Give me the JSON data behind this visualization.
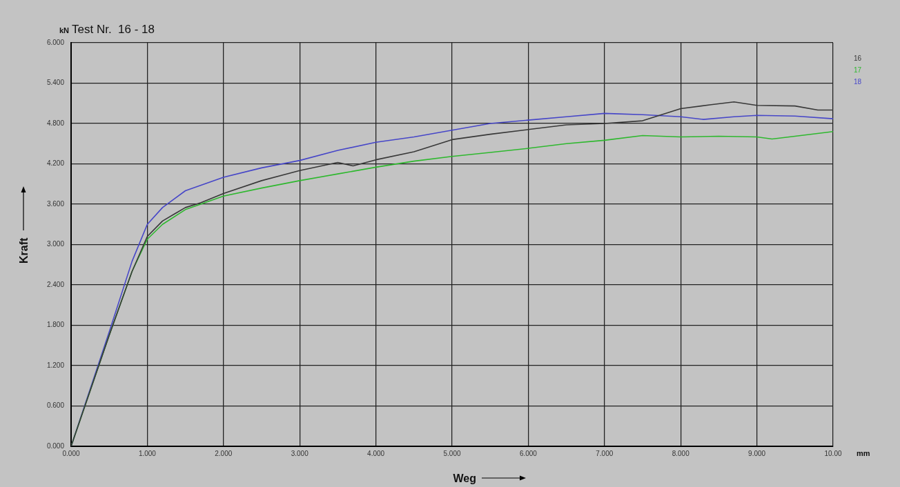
{
  "chart_data": {
    "type": "line",
    "title": "Test Nr.  16 - 18",
    "xlabel": "Weg",
    "ylabel": "Kraft",
    "annotations": [
      "kN",
      "mm"
    ],
    "xlim": [
      0,
      10
    ],
    "ylim": [
      0,
      6
    ],
    "xticks": [
      {
        "value": 0,
        "label": "0.000"
      },
      {
        "value": 1,
        "label": "1.000"
      },
      {
        "value": 2,
        "label": "2.000"
      },
      {
        "value": 3,
        "label": "3.000"
      },
      {
        "value": 4,
        "label": "4.000"
      },
      {
        "value": 5,
        "label": "5.000"
      },
      {
        "value": 6,
        "label": "6.000"
      },
      {
        "value": 7,
        "label": "7.000"
      },
      {
        "value": 8,
        "label": "8.000"
      },
      {
        "value": 9,
        "label": "9.000"
      },
      {
        "value": 10,
        "label": "10.00"
      }
    ],
    "yticks": [
      {
        "value": 0,
        "label": "0.000"
      },
      {
        "value": 0.6,
        "label": "0.600"
      },
      {
        "value": 1.2,
        "label": "1.200"
      },
      {
        "value": 1.8,
        "label": "1.800"
      },
      {
        "value": 2.4,
        "label": "2.400"
      },
      {
        "value": 3,
        "label": "3.000"
      },
      {
        "value": 3.6,
        "label": "3.600"
      },
      {
        "value": 4.2,
        "label": "4.200"
      },
      {
        "value": 4.8,
        "label": "4.800"
      },
      {
        "value": 5.4,
        "label": "5.400"
      },
      {
        "value": 6,
        "label": "6.000"
      }
    ],
    "grid": true,
    "legend": "top right",
    "marker": "none",
    "line_style": "solid",
    "series": [
      {
        "name": "16",
        "color": "#383838",
        "x": [
          0,
          0.5,
          0.8,
          1,
          1.2,
          1.5,
          1.7,
          2,
          2.5,
          3,
          3.5,
          3.7,
          4,
          4.5,
          5,
          5.5,
          6,
          6.5,
          7,
          7.5,
          8,
          8.4,
          8.7,
          9,
          9.5,
          9.8,
          10
        ],
        "values": [
          0,
          1.65,
          2.6,
          3.12,
          3.35,
          3.55,
          3.62,
          3.76,
          3.95,
          4.1,
          4.22,
          4.17,
          4.26,
          4.38,
          4.56,
          4.64,
          4.71,
          4.78,
          4.8,
          4.84,
          5.02,
          5.08,
          5.12,
          5.07,
          5.06,
          5.0,
          5.0
        ]
      },
      {
        "name": "17",
        "color": "#2eb82e",
        "x": [
          0,
          0.5,
          0.8,
          1,
          1.2,
          1.5,
          1.7,
          2,
          2.5,
          3,
          3.5,
          4,
          4.5,
          5,
          5.5,
          6,
          6.5,
          7,
          7.5,
          8,
          8.5,
          9,
          9.2,
          9.5,
          10
        ],
        "values": [
          0,
          1.65,
          2.6,
          3.08,
          3.3,
          3.52,
          3.6,
          3.72,
          3.84,
          3.95,
          4.05,
          4.15,
          4.24,
          4.31,
          4.37,
          4.43,
          4.5,
          4.55,
          4.62,
          4.6,
          4.61,
          4.6,
          4.57,
          4.61,
          4.68
        ]
      },
      {
        "name": "18",
        "color": "#4646c8",
        "x": [
          0,
          0.5,
          0.8,
          1,
          1.2,
          1.5,
          2,
          2.5,
          3,
          3.5,
          4,
          4.5,
          5,
          5.5,
          6,
          6.5,
          7,
          7.5,
          8,
          8.3,
          8.7,
          9,
          9.5,
          10
        ],
        "values": [
          0,
          1.7,
          2.75,
          3.3,
          3.55,
          3.8,
          4.0,
          4.14,
          4.25,
          4.4,
          4.52,
          4.6,
          4.7,
          4.8,
          4.85,
          4.9,
          4.95,
          4.93,
          4.9,
          4.86,
          4.9,
          4.92,
          4.91,
          4.87
        ]
      }
    ]
  }
}
